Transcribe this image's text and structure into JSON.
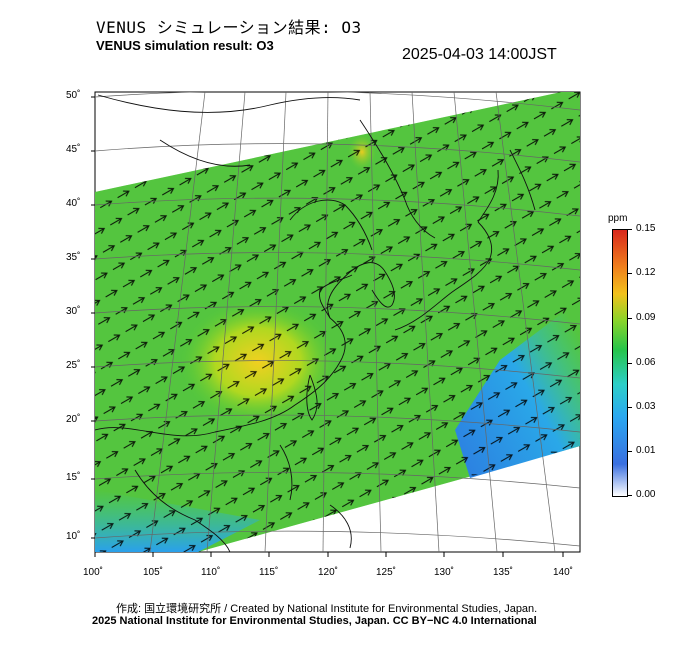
{
  "header": {
    "title_jp": "VENUS シミュレーション結果: O3",
    "title_en": "VENUS simulation result: O3",
    "timestamp": "2025-04-03 14:00JST"
  },
  "map": {
    "lat_labels": [
      "50˚",
      "45˚",
      "40˚",
      "35˚",
      "30˚",
      "25˚",
      "20˚",
      "15˚",
      "10˚"
    ],
    "lon_labels": [
      "100˚",
      "105˚",
      "110˚",
      "115˚",
      "120˚",
      "125˚",
      "130˚",
      "135˚",
      "140˚"
    ]
  },
  "colorbar": {
    "unit": "ppm",
    "labels": [
      "0.15",
      "0.12",
      "0.09",
      "0.06",
      "0.03",
      "0.01",
      "0.00"
    ]
  },
  "credits": {
    "line1": "作成: 国立環境研究所 / Created by National Institute for Environmental Studies, Japan.",
    "line2": "2025 National Institute for Environmental Studies, Japan. CC BY−NC 4.0 International"
  }
}
